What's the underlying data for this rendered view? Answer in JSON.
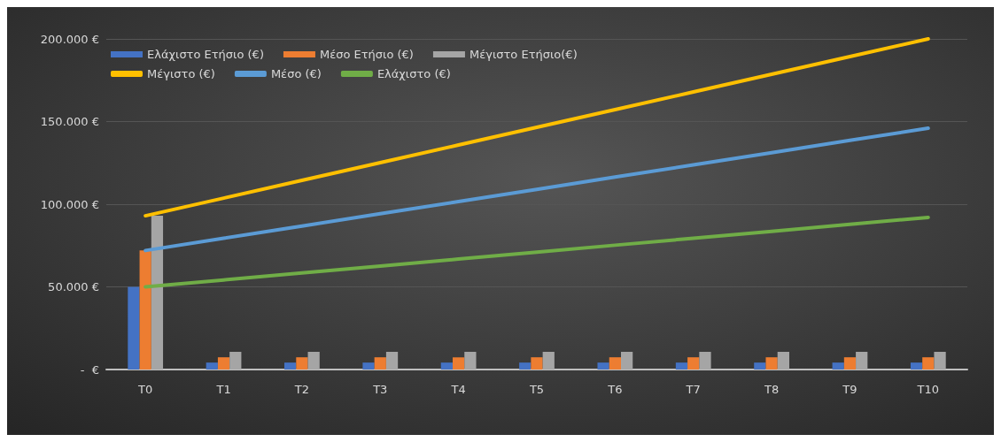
{
  "chart_data": {
    "type": "bar",
    "categories": [
      "T0",
      "T1",
      "T2",
      "T3",
      "T4",
      "T5",
      "T6",
      "T7",
      "T8",
      "T9",
      "T10"
    ],
    "series": [
      {
        "name": "Ελάχιστο Ετήσιο (€)",
        "color": "#4472c4",
        "values": [
          50000,
          4200,
          4200,
          4200,
          4200,
          4200,
          4200,
          4200,
          4200,
          4200,
          4200
        ]
      },
      {
        "name": "Μέσο Ετήσιο (€)",
        "color": "#ed7d31",
        "values": [
          72000,
          7400,
          7400,
          7400,
          7400,
          7400,
          7400,
          7400,
          7400,
          7400,
          7400
        ]
      },
      {
        "name": "Μέγιστο Ετήσιο(€)",
        "color": "#a5a5a5",
        "values": [
          93000,
          10700,
          10700,
          10700,
          10700,
          10700,
          10700,
          10700,
          10700,
          10700,
          10700
        ]
      },
      {
        "name": "Μέγιστο (€)",
        "type": "line",
        "color": "#ffc000",
        "values": [
          93000,
          103700,
          114400,
          125100,
          135800,
          146500,
          157200,
          167900,
          178600,
          189300,
          200000
        ]
      },
      {
        "name": "Μέσο (€)",
        "type": "line",
        "color": "#5b9bd5",
        "values": [
          72000,
          79400,
          86800,
          94200,
          101600,
          109000,
          116400,
          123800,
          131200,
          138600,
          146000
        ]
      },
      {
        "name": "Ελάχιστο (€)",
        "type": "line",
        "color": "#70ad47",
        "values": [
          50000,
          54200,
          58400,
          62600,
          66800,
          71000,
          75200,
          79400,
          83600,
          87800,
          92000
        ]
      }
    ],
    "ylim": [
      0,
      200000
    ],
    "yticks": [
      {
        "value": 0,
        "label": "-  €"
      },
      {
        "value": 50000,
        "label": "50.000 €"
      },
      {
        "value": 100000,
        "label": "100.000 €"
      },
      {
        "value": 150000,
        "label": "150.000 €"
      },
      {
        "value": 200000,
        "label": "200.000 €"
      }
    ],
    "grid": "y",
    "legend": "top left",
    "marker": "none",
    "line_style": "solid"
  }
}
